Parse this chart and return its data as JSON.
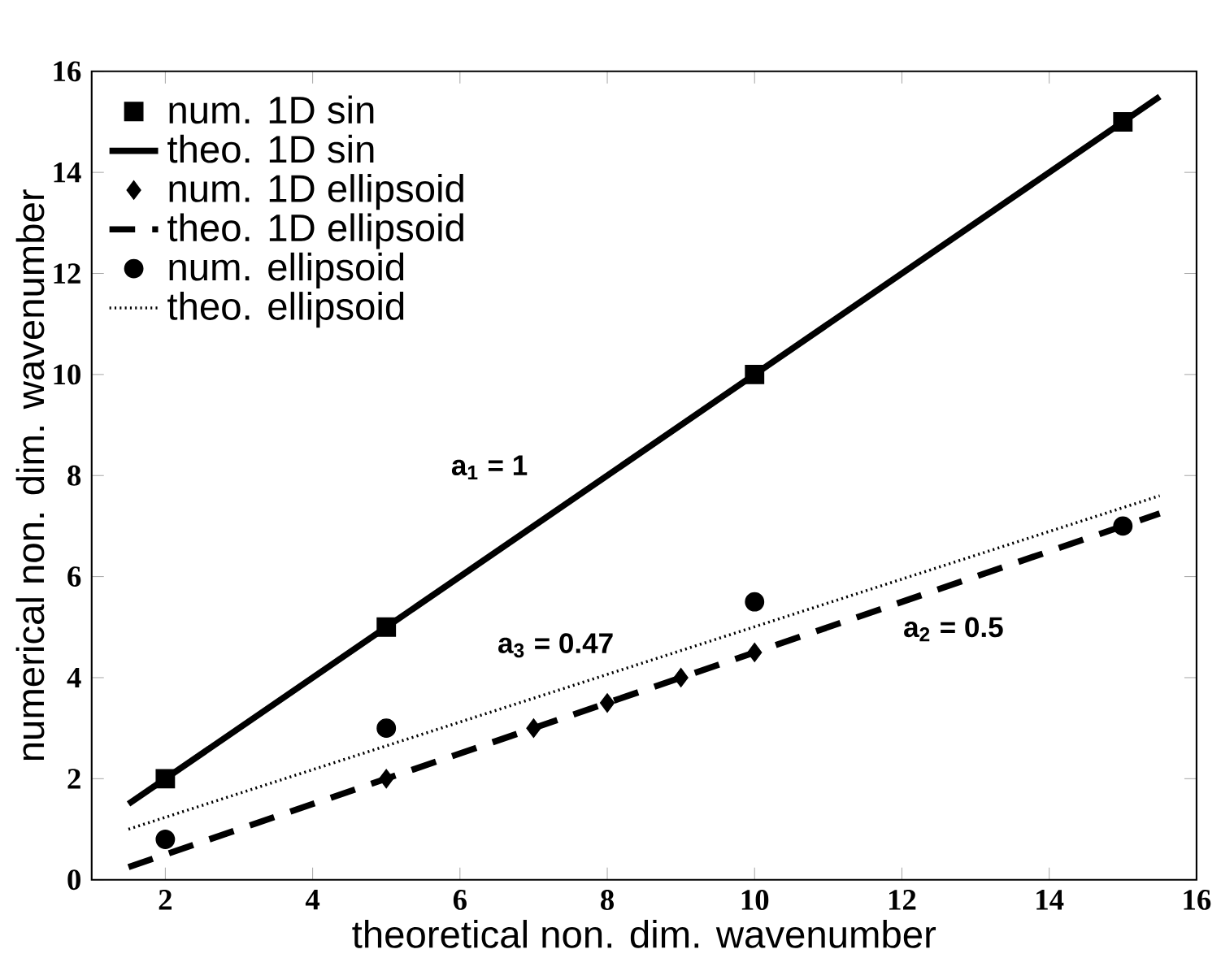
{
  "chart_data": {
    "type": "line",
    "xlabel": "theoretical non. dim. wavenumber",
    "ylabel": "numerical non. dim. wavenumber",
    "xlim": [
      1,
      16
    ],
    "ylim": [
      0,
      16
    ],
    "xticks": [
      2,
      4,
      6,
      8,
      10,
      12,
      14,
      16
    ],
    "yticks": [
      0,
      2,
      4,
      6,
      8,
      10,
      12,
      14,
      16
    ],
    "grid": false,
    "legend": "top left",
    "series": [
      {
        "name": "num. 1D sin",
        "type": "scatter",
        "marker": "square",
        "color": "#000000",
        "x": [
          2,
          5,
          10,
          15
        ],
        "values": [
          2,
          5,
          10,
          15
        ]
      },
      {
        "name": "theo. 1D sin",
        "marker": "none",
        "line_style": "solid",
        "color": "#000000",
        "x": [
          1.5,
          15.5
        ],
        "values": [
          1.5,
          15.5
        ]
      },
      {
        "name": "num. 1D ellipsoid",
        "type": "scatter",
        "marker": "diamond",
        "color": "#000000",
        "x": [
          5,
          7,
          8,
          9,
          10
        ],
        "values": [
          2,
          3,
          3.5,
          4,
          4.5
        ]
      },
      {
        "name": "theo. 1D ellipsoid",
        "marker": "none",
        "line_style": "dashed",
        "color": "#000000",
        "x": [
          1.5,
          15.5
        ],
        "values": [
          0.25,
          7.25
        ]
      },
      {
        "name": "num. ellipsoid",
        "type": "scatter",
        "marker": "circle",
        "color": "#000000",
        "x": [
          2,
          5,
          10,
          15
        ],
        "values": [
          0.8,
          3,
          5.5,
          7
        ]
      },
      {
        "name": "theo. ellipsoid",
        "marker": "none",
        "line_style": "dotted",
        "color": "#000000",
        "x": [
          1.5,
          15.5
        ],
        "values": [
          1.0,
          7.6
        ]
      }
    ],
    "annotations": [
      "a$_{1}$ = 1",
      "a$_{3}$ = 0.47",
      "a$_{2}$ = 0.5"
    ]
  }
}
